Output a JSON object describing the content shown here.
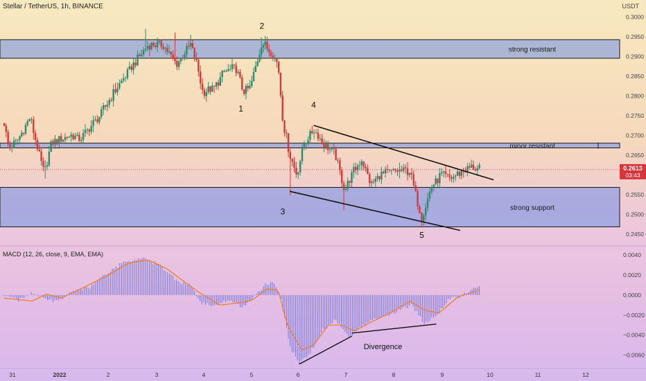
{
  "header": {
    "symbol": "Stellar / TetherUS, 1h, BINANCE",
    "currency": "USDT"
  },
  "indicator": {
    "label": "MACD (12, 26, close, 9, EMA, EMA)"
  },
  "price_label": {
    "value": "0.2613",
    "countdown": "03:43"
  },
  "colors": {
    "up": "#2a8a6b",
    "down": "#d03a3a",
    "zone_fill": "#6f8fe8",
    "zone_border": "#1a1a1a",
    "macd_hist": "#6f78e6",
    "signal": "#f07a22",
    "price_badge": "#d8363a"
  },
  "chart_data": [
    {
      "type": "line",
      "subtype": "candlestick",
      "title": "Stellar / TetherUS, 1h, BINANCE",
      "ylim": [
        0.2425,
        0.3025
      ],
      "y_ticks": [
        "0.3000",
        "0.2950",
        "0.2900",
        "0.2850",
        "0.2800",
        "0.2750",
        "0.2700",
        "0.2650",
        "0.2600",
        "0.2550",
        "0.2500",
        "0.2450"
      ],
      "x_ticks": [
        "31",
        "2022",
        "2",
        "3",
        "4",
        "5",
        "6",
        "7",
        "8",
        "9",
        "10",
        "11",
        "12"
      ],
      "path_anchors": [
        {
          "x": 0,
          "y": 0.273
        },
        {
          "x": 0.1,
          "y": 0.2665
        },
        {
          "x": 0.3,
          "y": 0.269
        },
        {
          "x": 0.55,
          "y": 0.2745
        },
        {
          "x": 0.85,
          "y": 0.26
        },
        {
          "x": 1.0,
          "y": 0.268
        },
        {
          "x": 1.4,
          "y": 0.27
        },
        {
          "x": 1.6,
          "y": 0.269
        },
        {
          "x": 2.0,
          "y": 0.275
        },
        {
          "x": 2.35,
          "y": 0.282
        },
        {
          "x": 2.7,
          "y": 0.288
        },
        {
          "x": 3.0,
          "y": 0.293
        },
        {
          "x": 3.3,
          "y": 0.293
        },
        {
          "x": 3.6,
          "y": 0.288
        },
        {
          "x": 3.9,
          "y": 0.293
        },
        {
          "x": 4.05,
          "y": 0.287
        },
        {
          "x": 4.15,
          "y": 0.281
        },
        {
          "x": 4.4,
          "y": 0.282
        },
        {
          "x": 4.6,
          "y": 0.286
        },
        {
          "x": 4.85,
          "y": 0.287
        },
        {
          "x": 5.0,
          "y": 0.281
        },
        {
          "x": 5.15,
          "y": 0.282
        },
        {
          "x": 5.4,
          "y": 0.2935
        },
        {
          "x": 5.6,
          "y": 0.291
        },
        {
          "x": 5.75,
          "y": 0.288
        },
        {
          "x": 5.85,
          "y": 0.274
        },
        {
          "x": 6.0,
          "y": 0.265
        },
        {
          "x": 6.15,
          "y": 0.26
        },
        {
          "x": 6.3,
          "y": 0.268
        },
        {
          "x": 6.5,
          "y": 0.2715
        },
        {
          "x": 6.7,
          "y": 0.268
        },
        {
          "x": 6.95,
          "y": 0.265
        },
        {
          "x": 7.15,
          "y": 0.256
        },
        {
          "x": 7.3,
          "y": 0.26
        },
        {
          "x": 7.5,
          "y": 0.264
        },
        {
          "x": 7.7,
          "y": 0.2575
        },
        {
          "x": 7.9,
          "y": 0.26
        },
        {
          "x": 8.2,
          "y": 0.261
        },
        {
          "x": 8.5,
          "y": 0.261
        },
        {
          "x": 8.75,
          "y": 0.249
        },
        {
          "x": 8.95,
          "y": 0.257
        },
        {
          "x": 9.15,
          "y": 0.26
        },
        {
          "x": 9.35,
          "y": 0.259
        },
        {
          "x": 9.6,
          "y": 0.261
        },
        {
          "x": 9.8,
          "y": 0.262
        },
        {
          "x": 9.95,
          "y": 0.2613
        }
      ],
      "spike_wicks": [
        {
          "x": 0.85,
          "low": 0.259
        },
        {
          "x": 2.95,
          "high": 0.297
        },
        {
          "x": 3.55,
          "high": 0.296
        },
        {
          "x": 3.9,
          "high": 0.2955
        },
        {
          "x": 5.4,
          "high": 0.2948
        },
        {
          "x": 6.0,
          "low": 0.2548
        },
        {
          "x": 7.15,
          "low": 0.251
        },
        {
          "x": 8.75,
          "low": 0.2468
        }
      ],
      "zones": [
        {
          "name": "strong resistant",
          "low": 0.2895,
          "high": 0.2942
        },
        {
          "name": "minor resistant",
          "low": 0.2668,
          "high": 0.268
        },
        {
          "name": "strong support",
          "low": 0.2468,
          "high": 0.2568
        }
      ],
      "trendlines": [
        {
          "x1": 6.5,
          "y1": 0.2725,
          "x2": 10.25,
          "y2": 0.2587
        },
        {
          "x1": 6.0,
          "y1": 0.2558,
          "x2": 9.55,
          "y2": 0.2459
        }
      ],
      "wave_labels": [
        {
          "text": "2",
          "x": 5.4,
          "y": 0.297
        },
        {
          "text": "1",
          "x": 4.95,
          "y": 0.276
        },
        {
          "text": "4",
          "x": 6.5,
          "y": 0.277
        },
        {
          "text": "3",
          "x": 5.85,
          "y": 0.25
        },
        {
          "text": "5",
          "x": 8.75,
          "y": 0.244
        }
      ],
      "current_price": 0.2613
    },
    {
      "type": "bar",
      "subtype": "macd",
      "title": "MACD (12, 26, close, 9, EMA, EMA)",
      "ylim": [
        -0.0072,
        0.0047
      ],
      "y_ticks": [
        "0.0040",
        "0.0020",
        "0.0000",
        "−0.0020",
        "−0.0040",
        "−0.0060"
      ],
      "histogram_anchors": [
        {
          "x": 0,
          "y": 0.0
        },
        {
          "x": 0.3,
          "y": -0.0005
        },
        {
          "x": 0.6,
          "y": 0.0002
        },
        {
          "x": 0.85,
          "y": -0.0003
        },
        {
          "x": 1.1,
          "y": -0.0006
        },
        {
          "x": 1.4,
          "y": 0.0002
        },
        {
          "x": 1.8,
          "y": 0.0008
        },
        {
          "x": 2.1,
          "y": 0.002
        },
        {
          "x": 2.5,
          "y": 0.0033
        },
        {
          "x": 2.9,
          "y": 0.0036
        },
        {
          "x": 3.25,
          "y": 0.003
        },
        {
          "x": 3.6,
          "y": 0.0014
        },
        {
          "x": 3.9,
          "y": 0.001
        },
        {
          "x": 4.1,
          "y": -0.0008
        },
        {
          "x": 4.4,
          "y": -0.001
        },
        {
          "x": 4.7,
          "y": -0.0005
        },
        {
          "x": 5.0,
          "y": -0.0012
        },
        {
          "x": 5.2,
          "y": -0.0005
        },
        {
          "x": 5.45,
          "y": 0.001
        },
        {
          "x": 5.65,
          "y": 0.0013
        },
        {
          "x": 5.8,
          "y": 0.0
        },
        {
          "x": 6.0,
          "y": -0.0052
        },
        {
          "x": 6.2,
          "y": -0.0068
        },
        {
          "x": 6.4,
          "y": -0.006
        },
        {
          "x": 6.7,
          "y": -0.0035
        },
        {
          "x": 6.95,
          "y": -0.0025
        },
        {
          "x": 7.25,
          "y": -0.0042
        },
        {
          "x": 7.5,
          "y": -0.003
        },
        {
          "x": 7.75,
          "y": -0.0025
        },
        {
          "x": 8.05,
          "y": -0.002
        },
        {
          "x": 8.3,
          "y": -0.0015
        },
        {
          "x": 8.55,
          "y": -0.001
        },
        {
          "x": 8.8,
          "y": -0.0028
        },
        {
          "x": 9.05,
          "y": -0.002
        },
        {
          "x": 9.3,
          "y": -0.0005
        },
        {
          "x": 9.6,
          "y": 0.0
        },
        {
          "x": 9.95,
          "y": 0.001
        }
      ],
      "signal_anchors": [
        {
          "x": 0,
          "y": -0.0003
        },
        {
          "x": 0.6,
          "y": -0.0006
        },
        {
          "x": 0.9,
          "y": 0.0001
        },
        {
          "x": 1.2,
          "y": -0.0003
        },
        {
          "x": 1.6,
          "y": 0.0006
        },
        {
          "x": 2.1,
          "y": 0.0018
        },
        {
          "x": 2.6,
          "y": 0.0032
        },
        {
          "x": 3.0,
          "y": 0.0035
        },
        {
          "x": 3.4,
          "y": 0.0026
        },
        {
          "x": 3.8,
          "y": 0.0012
        },
        {
          "x": 4.1,
          "y": 0.0002
        },
        {
          "x": 4.5,
          "y": -0.001
        },
        {
          "x": 4.9,
          "y": -0.0008
        },
        {
          "x": 5.2,
          "y": -0.0005
        },
        {
          "x": 5.5,
          "y": 0.0006
        },
        {
          "x": 5.75,
          "y": 0.0005
        },
        {
          "x": 5.95,
          "y": -0.003
        },
        {
          "x": 6.25,
          "y": -0.0055
        },
        {
          "x": 6.5,
          "y": -0.005
        },
        {
          "x": 6.8,
          "y": -0.003
        },
        {
          "x": 7.1,
          "y": -0.003
        },
        {
          "x": 7.35,
          "y": -0.0036
        },
        {
          "x": 7.7,
          "y": -0.0027
        },
        {
          "x": 8.1,
          "y": -0.0018
        },
        {
          "x": 8.5,
          "y": -0.0006
        },
        {
          "x": 8.8,
          "y": -0.0015
        },
        {
          "x": 9.1,
          "y": -0.0018
        },
        {
          "x": 9.5,
          "y": -0.0002
        },
        {
          "x": 9.95,
          "y": 0.0005
        }
      ],
      "divergence_lines": [
        {
          "x1": 6.2,
          "y1": -0.0069,
          "x2": 7.3,
          "y2": -0.0041
        },
        {
          "x1": 7.3,
          "y1": -0.0038,
          "x2": 9.05,
          "y2": -0.0029
        }
      ],
      "annotations": [
        {
          "text": "Divergence",
          "x": 7.95,
          "y": -0.0054
        }
      ]
    }
  ]
}
